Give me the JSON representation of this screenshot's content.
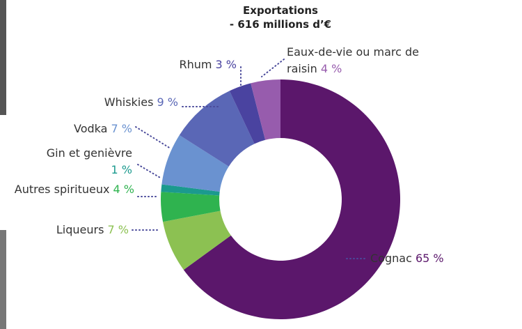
{
  "chart_data": {
    "type": "donut",
    "title": "Exportations",
    "subtitle": "- 616 millions d’€",
    "categories": [
      "Cognac",
      "Liqueurs",
      "Autres spiritueux",
      "Gin et genièvre",
      "Vodka",
      "Whiskies",
      "Rhum",
      "Eaux-de-vie ou marc de raisin"
    ],
    "values": [
      65,
      7,
      4,
      1,
      7,
      9,
      3,
      4
    ],
    "value_labels": [
      "65 %",
      "7 %",
      "4 %",
      "1 %",
      "7 %",
      "9 %",
      "3 %",
      "4 %"
    ],
    "colors": [
      "#5b176b",
      "#8cc152",
      "#2fb34f",
      "#1b9a8e",
      "#6a92d0",
      "#5a67b6",
      "#4a43a0",
      "#975cad"
    ]
  }
}
